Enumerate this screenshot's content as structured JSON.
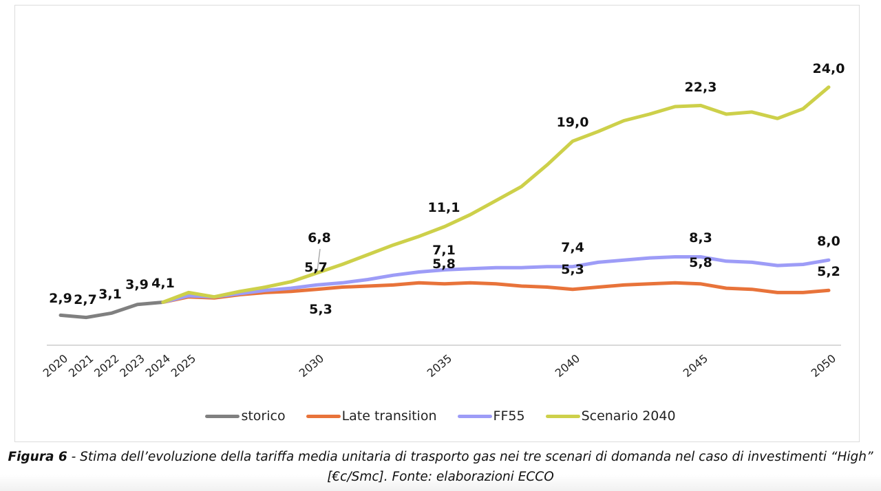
{
  "chart_data": {
    "type": "line",
    "title": "",
    "xlabel": "",
    "ylabel": "",
    "ylim": [
      0,
      25
    ],
    "grid": false,
    "legend_position": "bottom",
    "x_tick_labels": [
      "2020",
      "2021",
      "2022",
      "2023",
      "2024",
      "2025",
      "2030",
      "2035",
      "2040",
      "2045",
      "2050"
    ],
    "series": [
      {
        "name": "storico",
        "color": "#808080",
        "x": [
          2020,
          2021,
          2022,
          2023,
          2024
        ],
        "values": [
          2.9,
          2.7,
          3.1,
          3.9,
          4.1
        ]
      },
      {
        "name": "Late transition",
        "color": "#e8733a",
        "x": [
          2024,
          2025,
          2026,
          2027,
          2028,
          2029,
          2030,
          2031,
          2032,
          2033,
          2034,
          2035,
          2036,
          2037,
          2038,
          2039,
          2040,
          2041,
          2042,
          2043,
          2044,
          2045,
          2046,
          2047,
          2048,
          2049,
          2050
        ],
        "values": [
          4.1,
          4.6,
          4.5,
          4.8,
          5.0,
          5.1,
          5.3,
          5.5,
          5.6,
          5.7,
          5.9,
          5.8,
          5.9,
          5.8,
          5.6,
          5.5,
          5.3,
          5.5,
          5.7,
          5.8,
          5.9,
          5.8,
          5.4,
          5.3,
          5.0,
          5.0,
          5.2
        ]
      },
      {
        "name": "FF55",
        "color": "#9d9cf7",
        "x": [
          2024,
          2025,
          2026,
          2027,
          2028,
          2029,
          2030,
          2031,
          2032,
          2033,
          2034,
          2035,
          2036,
          2037,
          2038,
          2039,
          2040,
          2041,
          2042,
          2043,
          2044,
          2045,
          2046,
          2047,
          2048,
          2049,
          2050
        ],
        "values": [
          4.1,
          4.7,
          4.6,
          4.9,
          5.2,
          5.4,
          5.7,
          5.9,
          6.2,
          6.6,
          6.9,
          7.1,
          7.2,
          7.3,
          7.3,
          7.4,
          7.4,
          7.8,
          8.0,
          8.2,
          8.3,
          8.3,
          7.9,
          7.8,
          7.5,
          7.6,
          8.0
        ]
      },
      {
        "name": "Scenario 2040",
        "color": "#cdd04a",
        "x": [
          2024,
          2025,
          2026,
          2027,
          2028,
          2029,
          2030,
          2031,
          2032,
          2033,
          2034,
          2035,
          2036,
          2037,
          2038,
          2039,
          2040,
          2041,
          2042,
          2043,
          2044,
          2045,
          2046,
          2047,
          2048,
          2049,
          2050
        ],
        "values": [
          4.1,
          5.0,
          4.6,
          5.1,
          5.5,
          6.0,
          6.8,
          7.6,
          8.5,
          9.4,
          10.2,
          11.1,
          12.2,
          13.5,
          14.8,
          16.8,
          19.0,
          19.9,
          20.9,
          21.5,
          22.2,
          22.3,
          21.5,
          21.7,
          21.1,
          22.0,
          24.0
        ]
      }
    ],
    "annotations": [
      {
        "series": "storico",
        "x": 2020,
        "text": "2,9"
      },
      {
        "series": "storico",
        "x": 2021,
        "text": "2,7"
      },
      {
        "series": "storico",
        "x": 2022,
        "text": "3,1"
      },
      {
        "series": "storico",
        "x": 2023,
        "text": "3,9"
      },
      {
        "series": "storico",
        "x": 2024,
        "text": "4,1"
      },
      {
        "series": "Scenario 2040",
        "x": 2030,
        "text": "6,8"
      },
      {
        "series": "FF55",
        "x": 2030,
        "text": "5,7"
      },
      {
        "series": "Late transition",
        "x": 2030,
        "text": "5,3"
      },
      {
        "series": "Scenario 2040",
        "x": 2035,
        "text": "11,1"
      },
      {
        "series": "FF55",
        "x": 2035,
        "text": "7,1"
      },
      {
        "series": "Late transition",
        "x": 2035,
        "text": "5,8"
      },
      {
        "series": "Scenario 2040",
        "x": 2040,
        "text": "19,0"
      },
      {
        "series": "FF55",
        "x": 2040,
        "text": "7,4"
      },
      {
        "series": "Late transition",
        "x": 2040,
        "text": "5,3"
      },
      {
        "series": "Scenario 2040",
        "x": 2045,
        "text": "22,3"
      },
      {
        "series": "FF55",
        "x": 2045,
        "text": "8,3"
      },
      {
        "series": "Late transition",
        "x": 2045,
        "text": "5,8"
      },
      {
        "series": "Scenario 2040",
        "x": 2050,
        "text": "24,0"
      },
      {
        "series": "FF55",
        "x": 2050,
        "text": "8,0"
      },
      {
        "series": "Late transition",
        "x": 2050,
        "text": "5,2"
      }
    ]
  },
  "caption": {
    "figure_label": "Figura 6",
    "text": " - Stima dell’evoluzione della tariffa media unitaria di trasporto gas nei tre scenari di domanda nel caso di investimenti “High” [€c/Smc]. Fonte: elaborazioni ECCO"
  }
}
